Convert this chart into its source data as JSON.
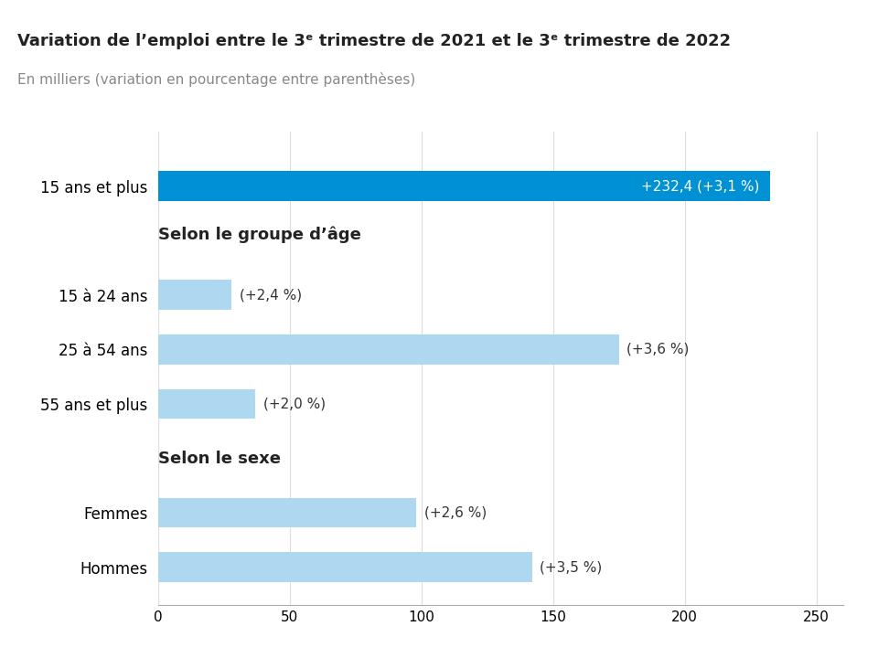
{
  "title": "Variation de l’emploi entre le 3ᵉ trimestre de 2021 et le 3ᵉ trimestre de 2022",
  "subtitle": "En milliers (variation en pourcentage entre parenthèses)",
  "section1_label": "Selon le groupe d’âge",
  "section2_label": "Selon le sexe",
  "categories": [
    "15 ans et plus",
    "15 à 24 ans",
    "25 à 54 ans",
    "55 ans et plus",
    "Femmes",
    "Hommes"
  ],
  "values": [
    232.4,
    28.0,
    175.0,
    37.0,
    98.0,
    142.0
  ],
  "labels": [
    "+232,4 (+3,1 %)",
    "(+2,4 %)",
    "(+3,6 %)",
    "(+2,0 %)",
    "(+2,6 %)",
    "(+3,5 %)"
  ],
  "bar_colors": [
    "#0090D4",
    "#ADD8F0",
    "#ADD8F0",
    "#ADD8F0",
    "#ADD8F0",
    "#ADD8F0"
  ],
  "label_colors": [
    "#FFFFFF",
    "#333333",
    "#333333",
    "#333333",
    "#333333",
    "#333333"
  ],
  "xlim": [
    0,
    260
  ],
  "xticks": [
    0,
    50,
    100,
    150,
    200,
    250
  ],
  "background_color": "#FFFFFF",
  "title_fontsize": 13,
  "subtitle_fontsize": 11,
  "label_fontsize": 11,
  "ytick_fontsize": 12,
  "section_fontsize": 13,
  "bar_height": 0.55
}
